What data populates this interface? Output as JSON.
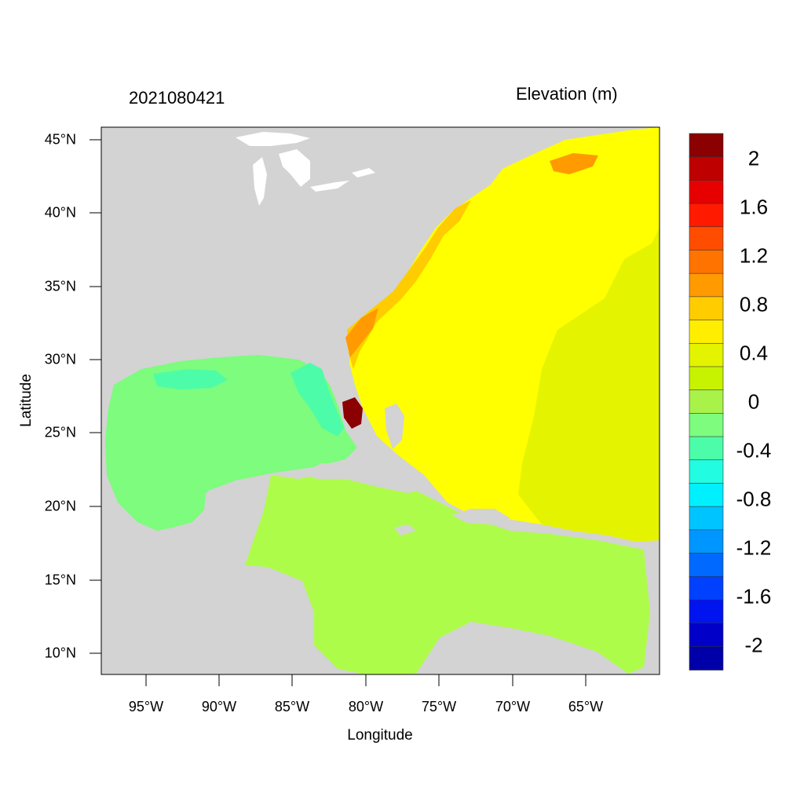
{
  "title_left": "2021080421",
  "title_right": "Elevation (m)",
  "axes": {
    "xlabel": "Longitude",
    "ylabel": "Latitude",
    "lon_range": [
      -98,
      -60
    ],
    "lat_range": [
      8.5,
      46
    ],
    "x_ticks": [
      "95°W",
      "90°W",
      "85°W",
      "80°W",
      "75°W",
      "70°W",
      "65°W"
    ],
    "y_ticks": [
      "45°N",
      "40°N",
      "35°N",
      "30°N",
      "25°N",
      "20°N",
      "15°N",
      "10°N"
    ]
  },
  "colorbar": {
    "labels": [
      "2",
      "1.6",
      "1.2",
      "0.8",
      "0.4",
      "0",
      "-0.4",
      "-0.8",
      "-1.2",
      "-1.6",
      "-2"
    ],
    "colors": [
      "#8b0000",
      "#bf0000",
      "#e60000",
      "#ff1a00",
      "#ff4d00",
      "#ff7300",
      "#ff9a00",
      "#ffcc00",
      "#ffee00",
      "#e4f400",
      "#c7f200",
      "#a8f24a",
      "#7dfc7d",
      "#4dfca8",
      "#22fce0",
      "#00f0ff",
      "#00c4ff",
      "#0096ff",
      "#0069ff",
      "#0040ff",
      "#0014ef",
      "#0000c8",
      "#0000a8"
    ]
  },
  "map_colors": {
    "land": "#d3d3d3",
    "lakes": "#ffffff",
    "atlantic": "#ffff00",
    "east_atlantic": "#e4f400",
    "caribbean": "#aefc4a",
    "gulf": "#7dfc7d",
    "gulf_low": "#4dfca8",
    "coastal_orange": "#ffcc00",
    "coastal_dark_orange": "#ff9a00",
    "extreme": "#8b0000"
  }
}
